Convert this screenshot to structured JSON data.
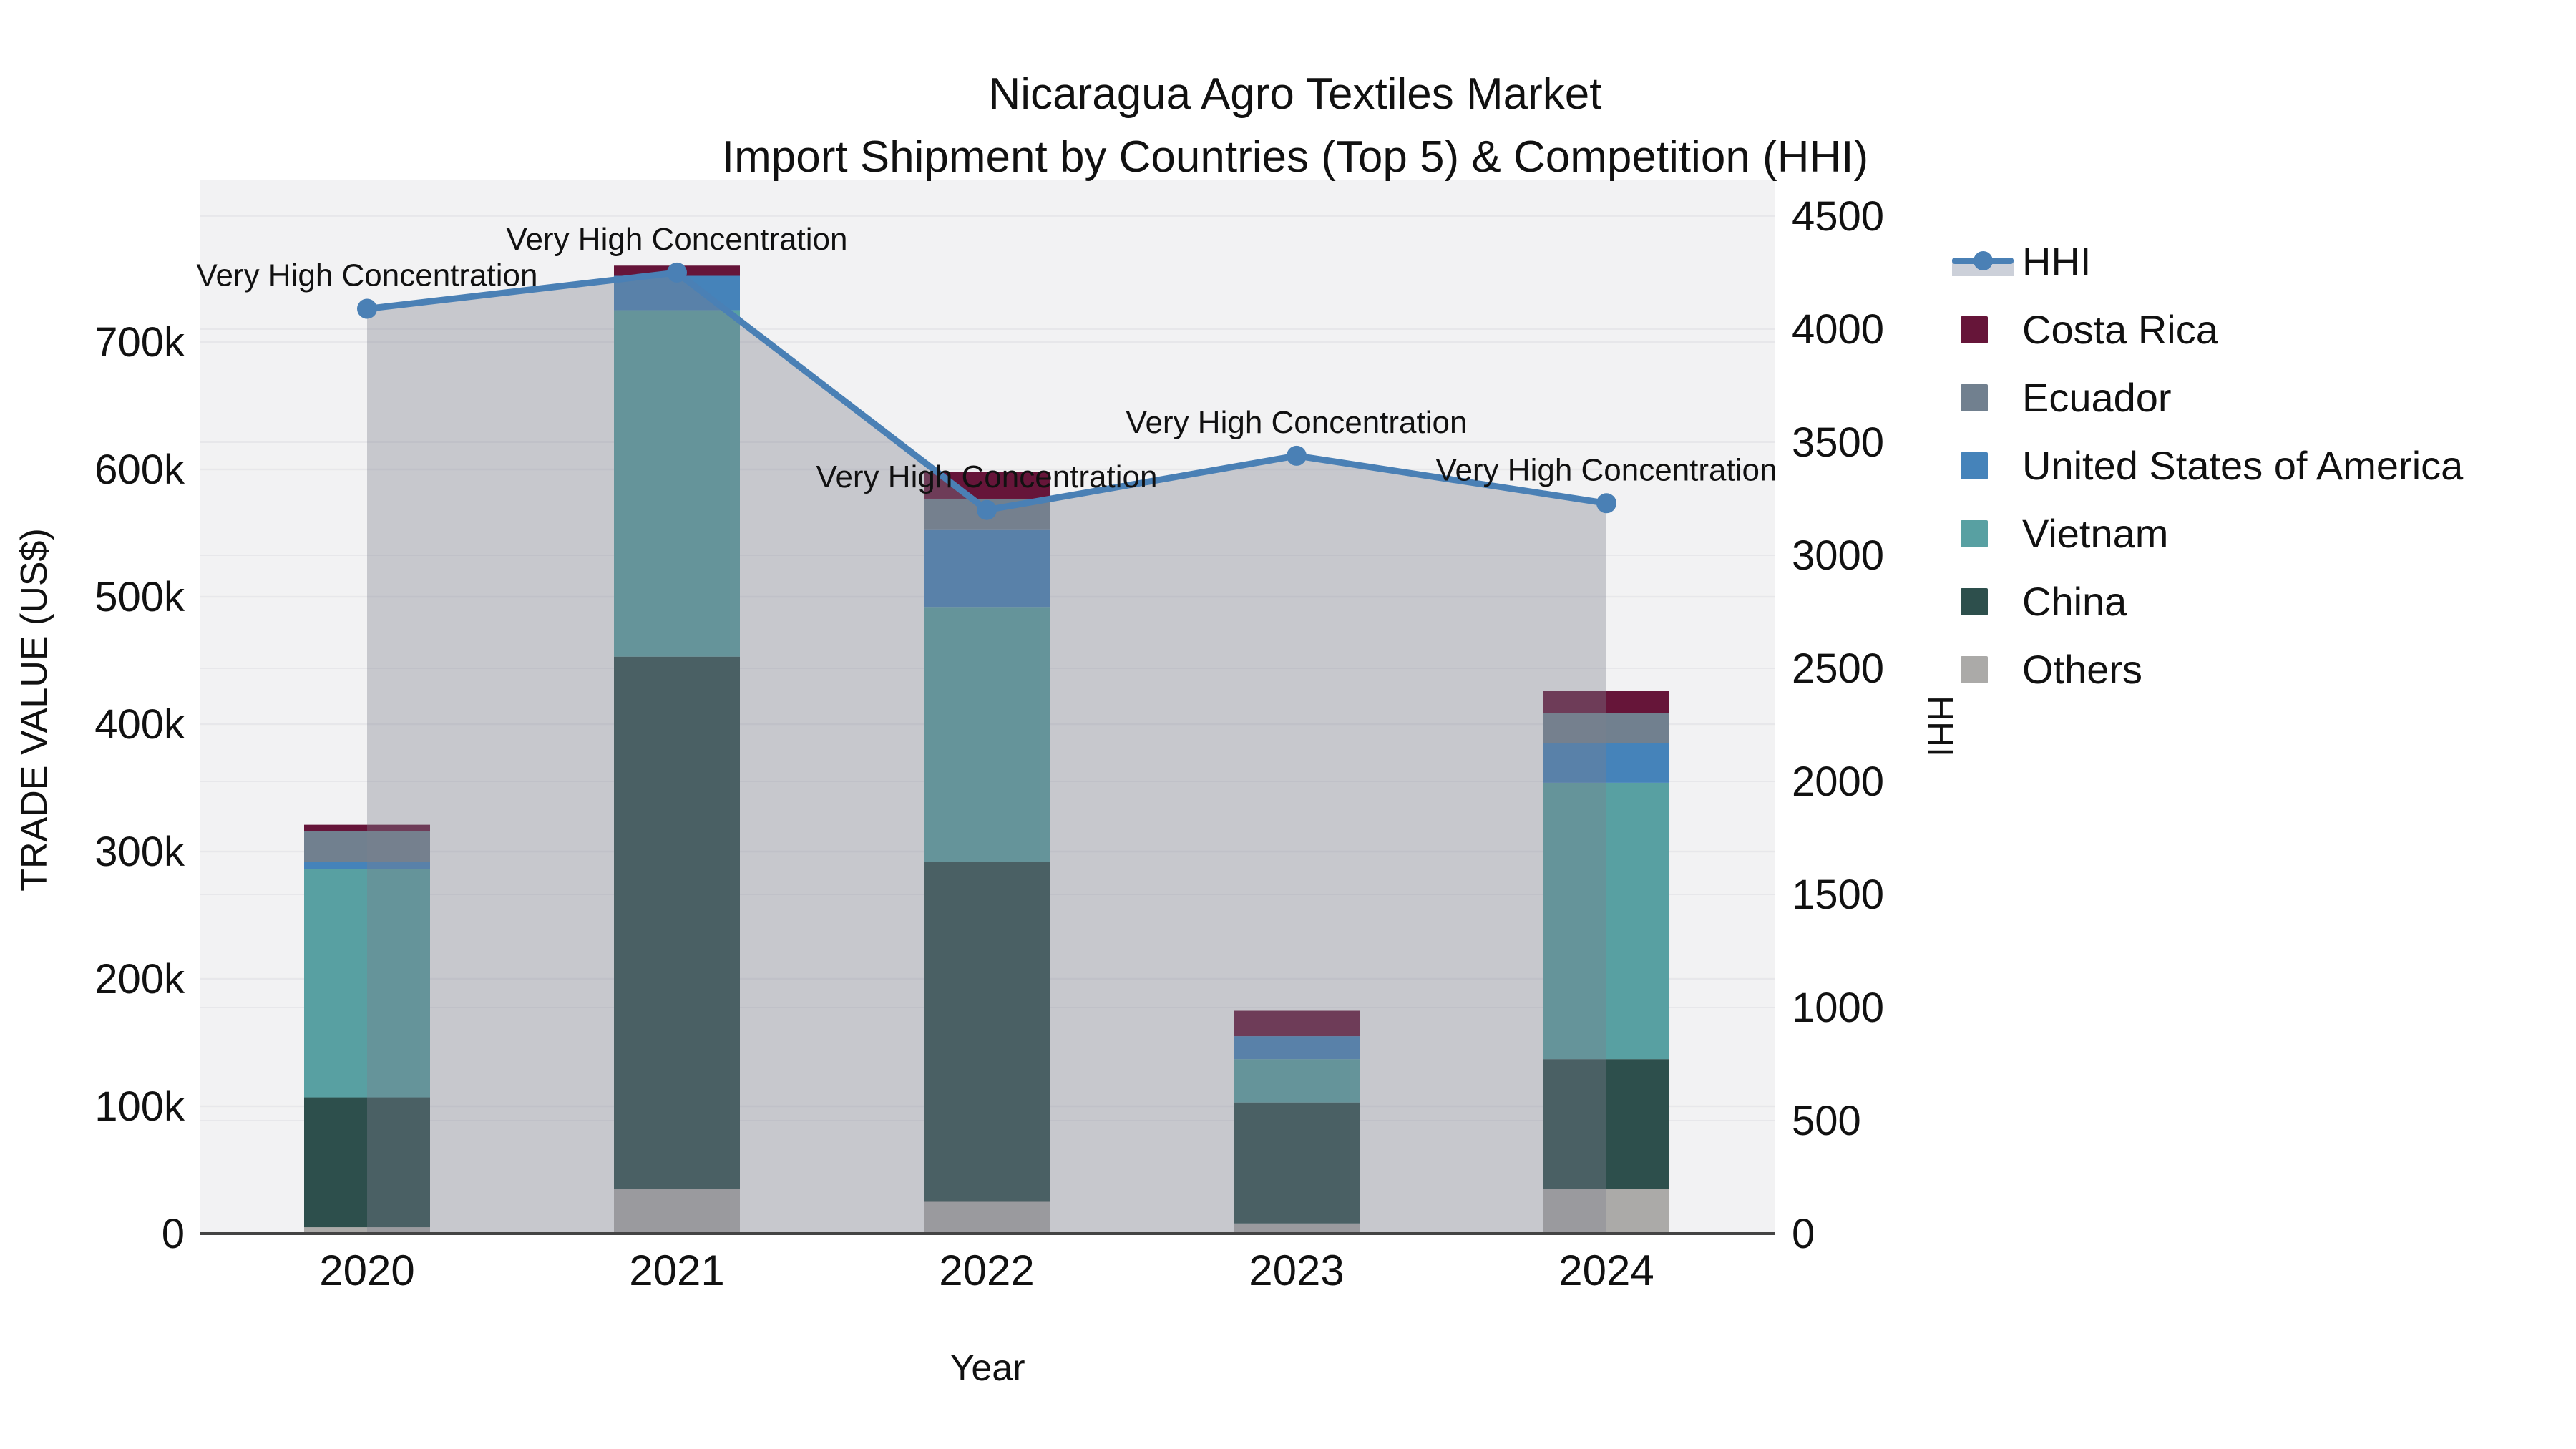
{
  "title": {
    "line1": "Nicaragua Agro Textiles Market",
    "line2": "Import Shipment by Countries (Top 5) & Competition (HHI)"
  },
  "chart_data": {
    "type": "bar",
    "subtype": "stacked-bar-with-line",
    "categories": [
      "2020",
      "2021",
      "2022",
      "2023",
      "2024"
    ],
    "series": [
      {
        "name": "Others",
        "color": "#abaaa8",
        "values_usd": [
          5000,
          35000,
          25000,
          8000,
          35000
        ]
      },
      {
        "name": "China",
        "color": "#2d4f4c",
        "values_usd": [
          102000,
          418000,
          267000,
          95000,
          102000
        ]
      },
      {
        "name": "Vietnam",
        "color": "#58a0a2",
        "values_usd": [
          179000,
          272000,
          200000,
          34000,
          217000
        ]
      },
      {
        "name": "United States of America",
        "color": "#4583ba",
        "values_usd": [
          6000,
          27000,
          61000,
          18000,
          31000
        ]
      },
      {
        "name": "Ecuador",
        "color": "#71808f",
        "values_usd": [
          24000,
          0,
          24000,
          0,
          24000
        ]
      },
      {
        "name": "Costa Rica",
        "color": "#661539",
        "values_usd": [
          5000,
          8000,
          21000,
          20000,
          17000
        ]
      }
    ],
    "line_series": {
      "name": "HHI",
      "color": "#4a80b5",
      "area_fill": "rgba(124,128,140,0.37)",
      "values": [
        4090,
        4250,
        3200,
        3440,
        3230
      ],
      "annotations": [
        "Very High Concentration",
        "Very High Concentration",
        "Very High Concentration",
        "Very High Concentration",
        "Very High Concentration"
      ]
    },
    "xlabel": "Year",
    "y1label": "TRADE VALUE (US$)",
    "y2label": "HHI",
    "y1ticks": {
      "values": [
        0,
        100000,
        200000,
        300000,
        400000,
        500000,
        600000,
        700000
      ],
      "labels": [
        "0",
        "100k",
        "200k",
        "300k",
        "400k",
        "500k",
        "600k",
        "700k"
      ]
    },
    "y2ticks": {
      "values": [
        0,
        500,
        1000,
        1500,
        2000,
        2500,
        3000,
        3500,
        4000,
        4500
      ],
      "labels": [
        "0",
        "500",
        "1000",
        "1500",
        "2000",
        "2500",
        "3000",
        "3500",
        "4000",
        "4500"
      ]
    },
    "y1lim": [
      0,
      827000
    ],
    "y2lim": [
      0,
      4658
    ],
    "grid": true,
    "plot_bg": "#f2f2f3",
    "grid_color": "#e7e7ea",
    "axisline_color": "#444444",
    "legend_position": "right",
    "legend_order": [
      "HHI",
      "Costa Rica",
      "Ecuador",
      "United States of America",
      "Vietnam",
      "China",
      "Others"
    ]
  }
}
